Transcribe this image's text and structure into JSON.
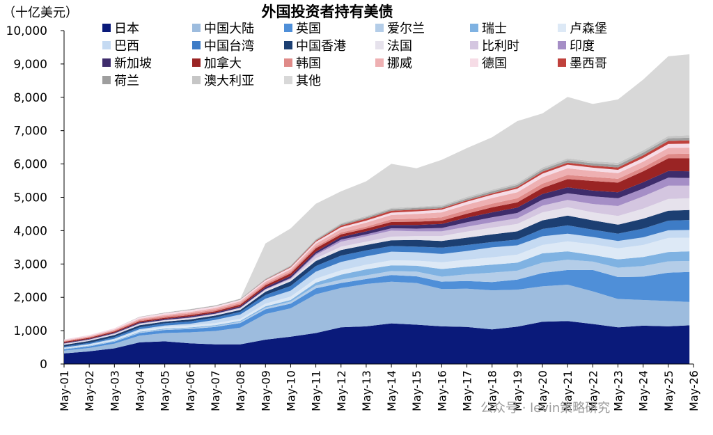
{
  "chart_data": {
    "type": "area",
    "stacked": true,
    "title": "外国投资者持有美债",
    "unit_label": "（十亿美元）",
    "ylim": [
      0,
      10000
    ],
    "yticks": [
      0,
      1000,
      2000,
      3000,
      4000,
      5000,
      6000,
      7000,
      8000,
      9000,
      10000
    ],
    "ytick_labels": [
      "0",
      "1,000",
      "2,000",
      "3,000",
      "4,000",
      "5,000",
      "6,000",
      "7,000",
      "8,000",
      "9,000",
      "10,000"
    ],
    "x_start": 2001.33,
    "x_end": 2026.33,
    "x_tick_labels": [
      "May-01",
      "May-02",
      "May-03",
      "May-04",
      "May-05",
      "May-06",
      "May-07",
      "May-08",
      "May-09",
      "May-10",
      "May-11",
      "May-12",
      "May-13",
      "May-14",
      "May-15",
      "May-16",
      "May-17",
      "May-18",
      "May-19",
      "May-20",
      "May-21",
      "May-22",
      "May-23",
      "May-24",
      "May-25",
      "May-26"
    ],
    "legend_position": "top",
    "watermark": "公众号 · levin策略研究",
    "x": [
      2001.33,
      2002.33,
      2003.33,
      2004.33,
      2005.33,
      2006.33,
      2007.33,
      2008.33,
      2009.33,
      2010.33,
      2011.33,
      2012.33,
      2013.33,
      2014.33,
      2015.33,
      2016.33,
      2017.33,
      2018.33,
      2019.33,
      2020.33,
      2021.33,
      2022.33,
      2023.33,
      2024.33,
      2025.33,
      2026.17
    ],
    "series": [
      {
        "name": "日本",
        "color": "#0a1a7a",
        "values": [
          320,
          380,
          470,
          650,
          680,
          620,
          590,
          590,
          730,
          820,
          930,
          1100,
          1130,
          1220,
          1180,
          1130,
          1110,
          1040,
          1120,
          1270,
          1290,
          1200,
          1100,
          1150,
          1130,
          1160
        ]
      },
      {
        "name": "中国大陆",
        "color": "#9dbcde",
        "values": [
          80,
          100,
          140,
          200,
          250,
          330,
          400,
          500,
          770,
          850,
          1160,
          1180,
          1270,
          1250,
          1250,
          1120,
          1150,
          1170,
          1110,
          1060,
          1090,
          980,
          850,
          770,
          760,
          700
        ]
      },
      {
        "name": "英国",
        "color": "#4f8fd8",
        "values": [
          40,
          50,
          60,
          80,
          90,
          100,
          120,
          140,
          140,
          140,
          180,
          150,
          150,
          200,
          200,
          220,
          230,
          250,
          300,
          400,
          440,
          640,
          660,
          700,
          850,
          900
        ]
      },
      {
        "name": "爱尔兰",
        "color": "#b4cde8",
        "values": [
          10,
          12,
          15,
          20,
          22,
          25,
          28,
          35,
          50,
          60,
          80,
          100,
          110,
          120,
          140,
          150,
          200,
          280,
          270,
          310,
          310,
          250,
          280,
          320,
          340,
          330
        ]
      },
      {
        "name": "瑞士",
        "color": "#7fb2e2",
        "values": [
          10,
          12,
          14,
          18,
          20,
          22,
          25,
          30,
          40,
          50,
          90,
          150,
          180,
          170,
          180,
          230,
          230,
          240,
          240,
          280,
          250,
          200,
          250,
          270,
          280,
          290
        ]
      },
      {
        "name": "卢森堡",
        "color": "#dde9f6",
        "values": [
          15,
          20,
          30,
          40,
          50,
          60,
          60,
          60,
          80,
          100,
          120,
          130,
          140,
          150,
          150,
          200,
          210,
          220,
          240,
          250,
          300,
          320,
          330,
          360,
          420,
          410
        ]
      },
      {
        "name": "巴西",
        "color": "#c5daf2",
        "values": [
          20,
          25,
          30,
          35,
          40,
          50,
          100,
          130,
          150,
          180,
          210,
          250,
          250,
          260,
          250,
          250,
          260,
          300,
          280,
          260,
          230,
          220,
          220,
          230,
          230,
          230
        ]
      },
      {
        "name": "中国台湾",
        "color": "#3e7cc6",
        "values": [
          30,
          35,
          50,
          60,
          70,
          70,
          70,
          80,
          110,
          140,
          170,
          190,
          180,
          170,
          170,
          190,
          180,
          160,
          170,
          220,
          250,
          220,
          220,
          260,
          290,
          300
        ]
      },
      {
        "name": "中国香港",
        "color": "#1c3f72",
        "values": [
          50,
          60,
          60,
          60,
          50,
          60,
          60,
          60,
          100,
          140,
          150,
          170,
          160,
          170,
          200,
          200,
          220,
          230,
          250,
          260,
          290,
          280,
          270,
          300,
          300,
          300
        ]
      },
      {
        "name": "法国",
        "color": "#e6e2ec",
        "values": [
          20,
          20,
          25,
          30,
          30,
          30,
          30,
          40,
          50,
          50,
          80,
          100,
          100,
          110,
          120,
          150,
          180,
          200,
          220,
          240,
          250,
          240,
          260,
          300,
          350,
          350
        ]
      },
      {
        "name": "比利时",
        "color": "#d4c6e0",
        "values": [
          20,
          20,
          25,
          25,
          20,
          20,
          20,
          20,
          20,
          30,
          100,
          150,
          160,
          180,
          140,
          140,
          150,
          160,
          170,
          200,
          220,
          250,
          300,
          370,
          400,
          380
        ]
      },
      {
        "name": "印度",
        "color": "#a58ec6",
        "values": [
          0,
          0,
          0,
          0,
          0,
          5,
          5,
          5,
          10,
          20,
          40,
          60,
          60,
          70,
          80,
          100,
          130,
          150,
          160,
          180,
          200,
          230,
          230,
          230,
          240,
          230
        ]
      },
      {
        "name": "新加坡",
        "color": "#3e2c6c",
        "values": [
          20,
          20,
          25,
          30,
          30,
          35,
          35,
          40,
          50,
          60,
          60,
          80,
          90,
          100,
          110,
          120,
          140,
          150,
          160,
          170,
          180,
          170,
          180,
          190,
          200,
          200
        ]
      },
      {
        "name": "加拿大",
        "color": "#9a2424",
        "values": [
          30,
          30,
          30,
          35,
          35,
          40,
          40,
          50,
          60,
          80,
          100,
          80,
          80,
          90,
          100,
          100,
          120,
          150,
          160,
          180,
          250,
          290,
          290,
          330,
          380,
          390
        ]
      },
      {
        "name": "韩国",
        "color": "#df8a88",
        "values": [
          20,
          25,
          30,
          40,
          45,
          50,
          45,
          45,
          45,
          50,
          55,
          55,
          60,
          80,
          90,
          100,
          110,
          110,
          120,
          130,
          120,
          120,
          115,
          120,
          130,
          140
        ]
      },
      {
        "name": "挪威",
        "color": "#eeb0b2",
        "values": [
          20,
          25,
          30,
          35,
          40,
          45,
          50,
          55,
          60,
          70,
          80,
          100,
          120,
          130,
          140,
          150,
          160,
          170,
          180,
          190,
          200,
          180,
          170,
          170,
          180,
          180
        ]
      },
      {
        "name": "德国",
        "color": "#f6dce6",
        "values": [
          30,
          35,
          40,
          50,
          55,
          55,
          55,
          50,
          50,
          55,
          60,
          60,
          60,
          70,
          80,
          80,
          90,
          100,
          110,
          110,
          110,
          100,
          100,
          110,
          120,
          120
        ]
      },
      {
        "name": "墨西哥",
        "color": "#c0413c",
        "values": [
          0,
          0,
          0,
          0,
          0,
          0,
          0,
          0,
          10,
          20,
          30,
          50,
          60,
          60,
          50,
          40,
          40,
          40,
          50,
          60,
          60,
          60,
          70,
          80,
          90,
          100
        ]
      },
      {
        "name": "荷兰",
        "color": "#9e9e9e",
        "values": [
          0,
          0,
          0,
          5,
          10,
          15,
          15,
          15,
          20,
          25,
          30,
          40,
          40,
          45,
          50,
          50,
          55,
          60,
          60,
          65,
          70,
          70,
          75,
          80,
          80,
          80
        ]
      },
      {
        "name": "澳大利亚",
        "color": "#c6c6c6",
        "values": [
          0,
          0,
          0,
          5,
          5,
          10,
          10,
          15,
          20,
          25,
          30,
          35,
          40,
          40,
          40,
          45,
          50,
          50,
          55,
          60,
          60,
          60,
          65,
          70,
          70,
          70
        ]
      },
      {
        "name": "其他",
        "color": "#d8d8d8",
        "values": [
          0,
          0,
          0,
          0,
          0,
          0,
          0,
          0,
          1050,
          1100,
          1050,
          950,
          1040,
          1320,
          1150,
          1360,
          1460,
          1570,
          1860,
          1620,
          1840,
          1720,
          1900,
          2120,
          2390,
          2430
        ]
      }
    ]
  }
}
